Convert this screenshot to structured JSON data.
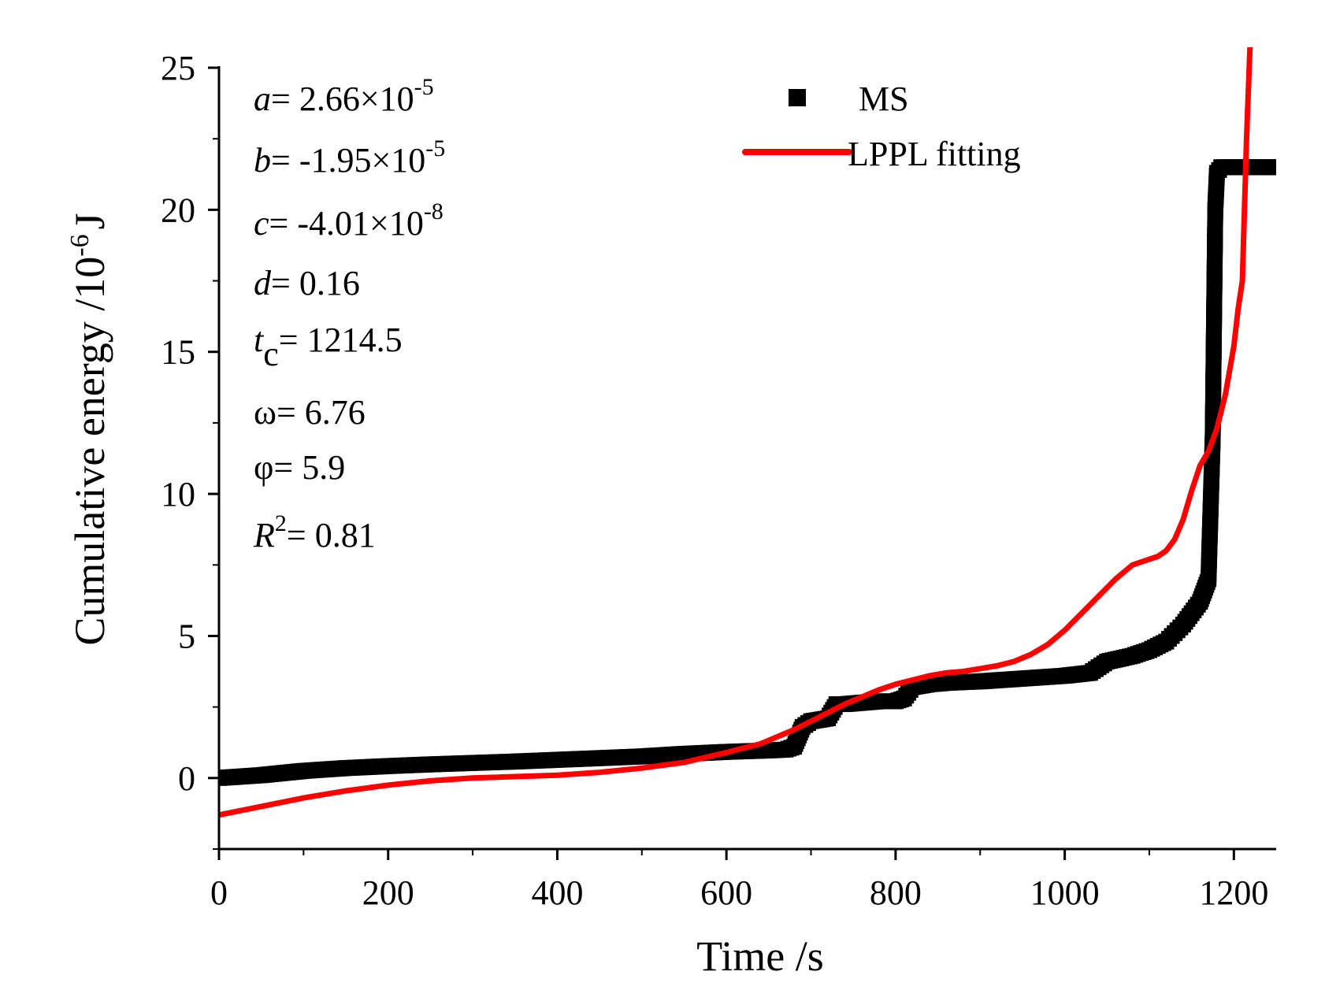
{
  "chart_data": {
    "type": "line",
    "title": "",
    "xlabel": "Time /s",
    "ylabel_parts": [
      "Cumulative energy /10",
      "-6",
      "J"
    ],
    "xlim": [
      0,
      1250
    ],
    "ylim": [
      -2.5,
      25
    ],
    "xticks": [
      0,
      200,
      400,
      600,
      800,
      1000,
      1200
    ],
    "yticks": [
      0,
      5,
      10,
      15,
      20,
      25
    ],
    "legend": {
      "position": "top-right",
      "entries": [
        {
          "label": "MS",
          "marker": "square",
          "color": "#000000"
        },
        {
          "label": "LPPL fitting",
          "marker": "line",
          "color": "#ff0000"
        }
      ]
    },
    "annotations": {
      "a": {
        "var": "a",
        "eq": "= 2.66×10",
        "exp": "-5"
      },
      "b": {
        "var": "b",
        "eq": "= -1.95×10",
        "exp": "-5"
      },
      "c": {
        "var": "c",
        "eq": "= -4.01×10",
        "exp": "-8"
      },
      "d": {
        "var": "d",
        "eq": "= 0.16"
      },
      "tc": {
        "var": "t",
        "sub": "c",
        "eq": "= 1214.5"
      },
      "omega": {
        "text": "ω= 6.76"
      },
      "phi": {
        "text": "φ= 5.9"
      },
      "r2": {
        "var": "R",
        "sup": "2",
        "eq": "= 0.81"
      }
    },
    "series": [
      {
        "name": "MS",
        "color": "#000000",
        "style": "square-markers",
        "x": [
          0,
          50,
          100,
          150,
          200,
          250,
          300,
          350,
          400,
          450,
          500,
          550,
          600,
          650,
          670,
          680,
          690,
          700,
          720,
          730,
          740,
          760,
          780,
          800,
          810,
          820,
          840,
          860,
          900,
          950,
          1000,
          1030,
          1050,
          1080,
          1100,
          1120,
          1140,
          1160,
          1170,
          1175,
          1178,
          1180,
          1185,
          1200,
          1230,
          1250
        ],
        "y": [
          0.0,
          0.1,
          0.25,
          0.35,
          0.42,
          0.48,
          0.53,
          0.58,
          0.64,
          0.7,
          0.76,
          0.85,
          0.92,
          0.97,
          1.0,
          1.1,
          1.8,
          2.0,
          2.1,
          2.6,
          2.6,
          2.65,
          2.7,
          2.7,
          2.8,
          3.2,
          3.3,
          3.35,
          3.4,
          3.5,
          3.6,
          3.7,
          4.1,
          4.3,
          4.5,
          4.8,
          5.4,
          6.2,
          7.0,
          12.0,
          20.0,
          21.3,
          21.5,
          21.5,
          21.5,
          21.5
        ]
      },
      {
        "name": "LPPL fitting",
        "color": "#ff0000",
        "style": "line",
        "x": [
          0,
          50,
          100,
          150,
          200,
          250,
          300,
          350,
          400,
          450,
          500,
          550,
          600,
          620,
          640,
          660,
          680,
          700,
          720,
          740,
          760,
          780,
          800,
          820,
          840,
          860,
          880,
          900,
          920,
          940,
          960,
          980,
          1000,
          1020,
          1040,
          1060,
          1080,
          1100,
          1110,
          1120,
          1130,
          1140,
          1150,
          1160,
          1170,
          1180,
          1190,
          1200,
          1205,
          1210,
          1212,
          1215,
          1220
        ],
        "y": [
          -1.3,
          -1.0,
          -0.7,
          -0.45,
          -0.25,
          -0.1,
          0.0,
          0.05,
          0.1,
          0.2,
          0.35,
          0.55,
          0.9,
          1.05,
          1.2,
          1.45,
          1.7,
          2.0,
          2.3,
          2.6,
          2.85,
          3.1,
          3.3,
          3.45,
          3.6,
          3.7,
          3.75,
          3.85,
          3.95,
          4.1,
          4.35,
          4.7,
          5.2,
          5.8,
          6.4,
          7.0,
          7.5,
          7.7,
          7.8,
          8.0,
          8.4,
          9.1,
          10.1,
          11.0,
          11.5,
          12.3,
          13.5,
          15.2,
          16.5,
          17.5,
          19.5,
          22.5,
          26.5
        ]
      }
    ]
  }
}
